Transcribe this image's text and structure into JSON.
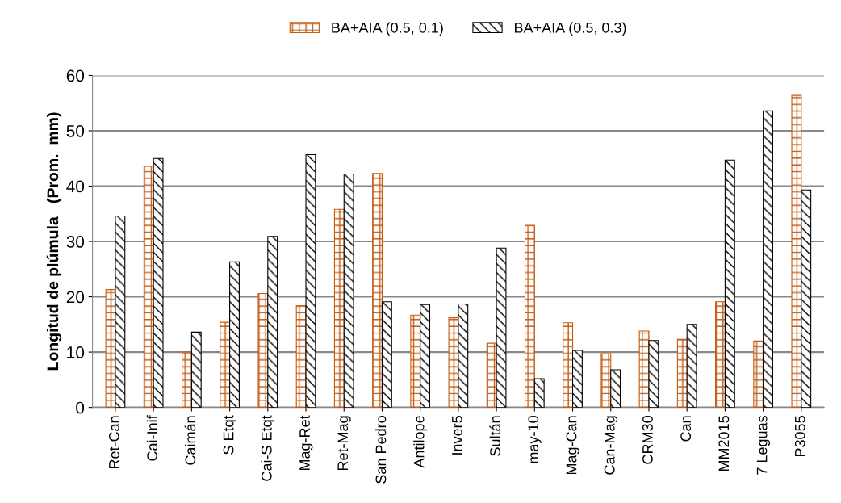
{
  "chart_data": {
    "type": "bar",
    "ylabel": "Longitud de plúmula   (Prom.  mm)",
    "categories": [
      "Ret-Can",
      "Cai-Inif",
      "Caimán",
      "S Etqt",
      "Cai-S Etqt",
      "Mag-Ret",
      "Ret-Mag",
      "San Pedro",
      "Antilope",
      "Inver5",
      "Sultán",
      "may-10",
      "Mag-Can",
      "Can-Mag",
      "CRM30",
      "Can",
      "MM2015",
      "7 Leguas",
      "P3055"
    ],
    "series": [
      {
        "name": "BA+AIA (0.5, 0.1)",
        "color": "#c55a11",
        "values": [
          21.3,
          43.6,
          10.0,
          15.4,
          20.6,
          18.4,
          35.8,
          42.3,
          16.7,
          16.2,
          11.6,
          32.9,
          15.3,
          9.7,
          13.8,
          12.3,
          19.1,
          12.0,
          56.4
        ]
      },
      {
        "name": "BA+AIA (0.5, 0.3)",
        "color": "#000000",
        "values": [
          34.6,
          45.0,
          13.6,
          26.3,
          30.9,
          45.7,
          42.2,
          19.1,
          18.6,
          18.7,
          28.8,
          5.2,
          10.3,
          6.8,
          12.1,
          15.0,
          44.7,
          53.6,
          39.3
        ]
      }
    ],
    "ylim": [
      0,
      60
    ],
    "yticks": [
      0,
      10,
      20,
      30,
      40,
      50,
      60
    ],
    "grid": "y",
    "legend": "top"
  }
}
